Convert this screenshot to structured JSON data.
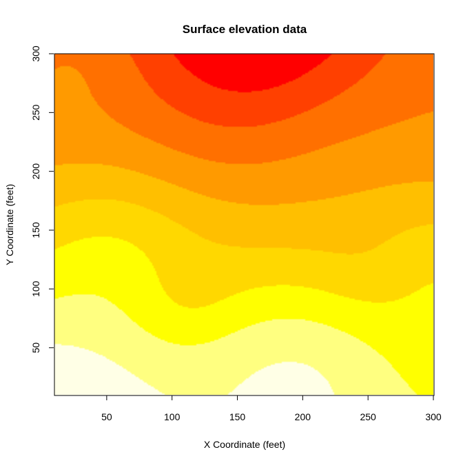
{
  "chart_data": {
    "type": "heatmap",
    "subtype": "filled-contour",
    "title": "Surface elevation data",
    "xlabel": "X Coordinate (feet)",
    "ylabel": "Y Coordinate (feet)",
    "xlim": [
      10,
      300
    ],
    "ylim": [
      10,
      300
    ],
    "xticks": [
      50,
      100,
      150,
      200,
      250,
      300
    ],
    "yticks": [
      50,
      100,
      150,
      200,
      250,
      300
    ],
    "levels": 9,
    "colors": [
      "#FFFFE6",
      "#FFFF80",
      "#FFFF00",
      "#FFD800",
      "#FFBF00",
      "#FF9A00",
      "#FF7000",
      "#FF4000",
      "#FF0000"
    ],
    "high_region": {
      "x": 165,
      "y": 300
    },
    "low_regions": [
      {
        "x": 10,
        "y": 10
      },
      {
        "x": 195,
        "y": 35
      }
    ],
    "grid": false
  }
}
